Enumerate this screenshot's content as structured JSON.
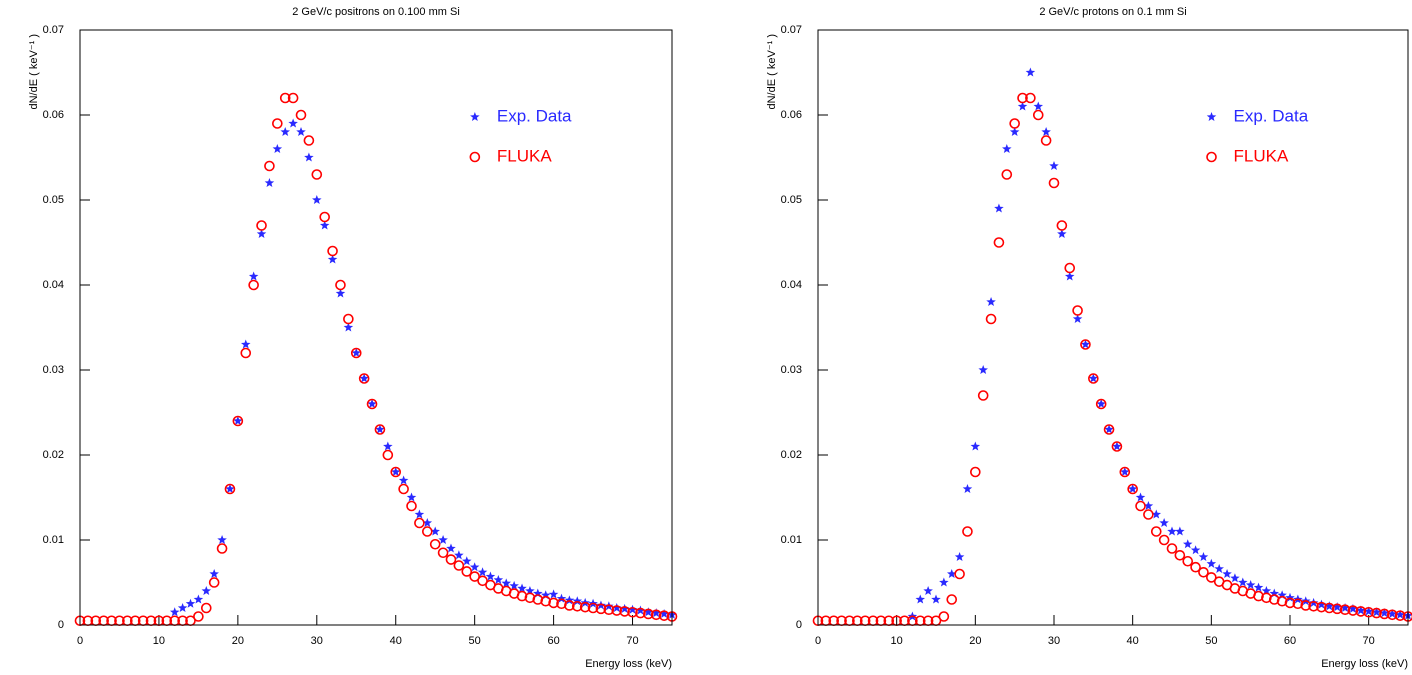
{
  "chart_data": [
    {
      "type": "scatter",
      "title": "2 GeV/c positrons on 0.100 mm Si",
      "xlabel": "Energy loss (keV)",
      "ylabel": "dN/dE ( keV⁻¹ )",
      "xlim": [
        0,
        75
      ],
      "ylim": [
        0,
        0.07
      ],
      "xticks": [
        0,
        10,
        20,
        30,
        40,
        50,
        60,
        70
      ],
      "yticks": [
        0,
        0.01,
        0.02,
        0.03,
        0.04,
        0.05,
        0.06,
        0.07
      ],
      "legend": "upper right",
      "series": [
        {
          "name": "Exp. Data",
          "color": "#2a2aff",
          "marker": "star",
          "x": [
            12,
            13,
            14,
            15,
            16,
            17,
            18,
            19,
            20,
            21,
            22,
            23,
            24,
            25,
            26,
            27,
            28,
            29,
            30,
            31,
            32,
            33,
            34,
            35,
            36,
            37,
            38,
            39,
            40,
            41,
            42,
            43,
            44,
            45,
            46,
            47,
            48,
            49,
            50,
            51,
            52,
            53,
            54,
            55,
            56,
            57,
            58,
            59,
            60,
            61,
            62,
            63,
            64,
            65,
            66,
            67,
            68,
            69,
            70,
            71,
            72,
            73,
            74,
            75
          ],
          "values": [
            0.0015,
            0.002,
            0.0025,
            0.003,
            0.004,
            0.006,
            0.01,
            0.016,
            0.024,
            0.033,
            0.041,
            0.046,
            0.052,
            0.056,
            0.058,
            0.059,
            0.058,
            0.055,
            0.05,
            0.047,
            0.043,
            0.039,
            0.035,
            0.032,
            0.029,
            0.026,
            0.023,
            0.021,
            0.018,
            0.017,
            0.015,
            0.013,
            0.012,
            0.011,
            0.01,
            0.009,
            0.0082,
            0.0075,
            0.0068,
            0.0062,
            0.0057,
            0.0053,
            0.0049,
            0.0046,
            0.0043,
            0.004,
            0.0037,
            0.0035,
            0.0036,
            0.0031,
            0.0029,
            0.0028,
            0.0026,
            0.0025,
            0.0023,
            0.0022,
            0.002,
            0.0019,
            0.0018,
            0.0017,
            0.0015,
            0.0014,
            0.0013,
            0.0012
          ]
        },
        {
          "name": "FLUKA",
          "color": "#ff0000",
          "marker": "circle",
          "x": [
            0,
            1,
            2,
            3,
            4,
            5,
            6,
            7,
            8,
            9,
            10,
            11,
            12,
            13,
            14,
            15,
            16,
            17,
            18,
            19,
            20,
            21,
            22,
            23,
            24,
            25,
            26,
            27,
            28,
            29,
            30,
            31,
            32,
            33,
            34,
            35,
            36,
            37,
            38,
            39,
            40,
            41,
            42,
            43,
            44,
            45,
            46,
            47,
            48,
            49,
            50,
            51,
            52,
            53,
            54,
            55,
            56,
            57,
            58,
            59,
            60,
            61,
            62,
            63,
            64,
            65,
            66,
            67,
            68,
            69,
            70,
            71,
            72,
            73,
            74,
            75
          ],
          "values": [
            0.0005,
            0.0005,
            0.0005,
            0.0005,
            0.0005,
            0.0005,
            0.0005,
            0.0005,
            0.0005,
            0.0005,
            0.0005,
            0.0005,
            0.0005,
            0.0005,
            0.0005,
            0.001,
            0.002,
            0.005,
            0.009,
            0.016,
            0.024,
            0.032,
            0.04,
            0.047,
            0.054,
            0.059,
            0.062,
            0.062,
            0.06,
            0.057,
            0.053,
            0.048,
            0.044,
            0.04,
            0.036,
            0.032,
            0.029,
            0.026,
            0.023,
            0.02,
            0.018,
            0.016,
            0.014,
            0.012,
            0.011,
            0.0095,
            0.0085,
            0.0077,
            0.007,
            0.0063,
            0.0057,
            0.0052,
            0.0047,
            0.0043,
            0.004,
            0.0037,
            0.0034,
            0.0032,
            0.003,
            0.0028,
            0.0026,
            0.0025,
            0.0023,
            0.0022,
            0.0021,
            0.002,
            0.0019,
            0.0018,
            0.0017,
            0.0016,
            0.0015,
            0.0014,
            0.0013,
            0.0012,
            0.0011,
            0.001
          ]
        }
      ]
    },
    {
      "type": "scatter",
      "title": "2 GeV/c protons on 0.1 mm Si",
      "xlabel": "Energy loss (keV)",
      "ylabel": "dN/dE ( keV⁻¹ )",
      "xlim": [
        0,
        75
      ],
      "ylim": [
        0,
        0.07
      ],
      "xticks": [
        0,
        10,
        20,
        30,
        40,
        50,
        60,
        70
      ],
      "yticks": [
        0,
        0.01,
        0.02,
        0.03,
        0.04,
        0.05,
        0.06,
        0.07
      ],
      "legend": "upper right",
      "series": [
        {
          "name": "Exp. Data",
          "color": "#2a2aff",
          "marker": "star",
          "x": [
            12,
            13,
            14,
            15,
            16,
            17,
            18,
            19,
            20,
            21,
            22,
            23,
            24,
            25,
            26,
            27,
            28,
            29,
            30,
            31,
            32,
            33,
            34,
            35,
            36,
            37,
            38,
            39,
            40,
            41,
            42,
            43,
            44,
            45,
            46,
            47,
            48,
            49,
            50,
            51,
            52,
            53,
            54,
            55,
            56,
            57,
            58,
            59,
            60,
            61,
            62,
            63,
            64,
            65,
            66,
            67,
            68,
            69,
            70,
            71,
            72,
            73,
            74,
            75
          ],
          "values": [
            0.001,
            0.003,
            0.004,
            0.003,
            0.005,
            0.006,
            0.008,
            0.016,
            0.021,
            0.03,
            0.038,
            0.049,
            0.056,
            0.058,
            0.061,
            0.065,
            0.061,
            0.058,
            0.054,
            0.046,
            0.041,
            0.036,
            0.033,
            0.029,
            0.026,
            0.023,
            0.021,
            0.018,
            0.016,
            0.015,
            0.014,
            0.013,
            0.012,
            0.011,
            0.011,
            0.0095,
            0.0088,
            0.008,
            0.0072,
            0.0066,
            0.006,
            0.0055,
            0.005,
            0.0047,
            0.0044,
            0.004,
            0.0037,
            0.0035,
            0.0032,
            0.003,
            0.0028,
            0.0026,
            0.0024,
            0.0022,
            0.0021,
            0.002,
            0.0019,
            0.0017,
            0.0016,
            0.0015,
            0.0014,
            0.0013,
            0.0012,
            0.0011
          ]
        },
        {
          "name": "FLUKA",
          "color": "#ff0000",
          "marker": "circle",
          "x": [
            0,
            1,
            2,
            3,
            4,
            5,
            6,
            7,
            8,
            9,
            10,
            11,
            12,
            13,
            14,
            15,
            16,
            17,
            18,
            19,
            20,
            21,
            22,
            23,
            24,
            25,
            26,
            27,
            28,
            29,
            30,
            31,
            32,
            33,
            34,
            35,
            36,
            37,
            38,
            39,
            40,
            41,
            42,
            43,
            44,
            45,
            46,
            47,
            48,
            49,
            50,
            51,
            52,
            53,
            54,
            55,
            56,
            57,
            58,
            59,
            60,
            61,
            62,
            63,
            64,
            65,
            66,
            67,
            68,
            69,
            70,
            71,
            72,
            73,
            74,
            75
          ],
          "values": [
            0.0005,
            0.0005,
            0.0005,
            0.0005,
            0.0005,
            0.0005,
            0.0005,
            0.0005,
            0.0005,
            0.0005,
            0.0005,
            0.0005,
            0.0005,
            0.0005,
            0.0005,
            0.0005,
            0.001,
            0.003,
            0.006,
            0.011,
            0.018,
            0.027,
            0.036,
            0.045,
            0.053,
            0.059,
            0.062,
            0.062,
            0.06,
            0.057,
            0.052,
            0.047,
            0.042,
            0.037,
            0.033,
            0.029,
            0.026,
            0.023,
            0.021,
            0.018,
            0.016,
            0.014,
            0.013,
            0.011,
            0.01,
            0.009,
            0.0082,
            0.0075,
            0.0068,
            0.0062,
            0.0056,
            0.0051,
            0.0047,
            0.0043,
            0.004,
            0.0037,
            0.0034,
            0.0032,
            0.003,
            0.0028,
            0.0026,
            0.0025,
            0.0023,
            0.0022,
            0.0021,
            0.002,
            0.0019,
            0.0018,
            0.0017,
            0.0016,
            0.0015,
            0.0014,
            0.0013,
            0.0012,
            0.0011,
            0.001
          ]
        }
      ]
    }
  ]
}
